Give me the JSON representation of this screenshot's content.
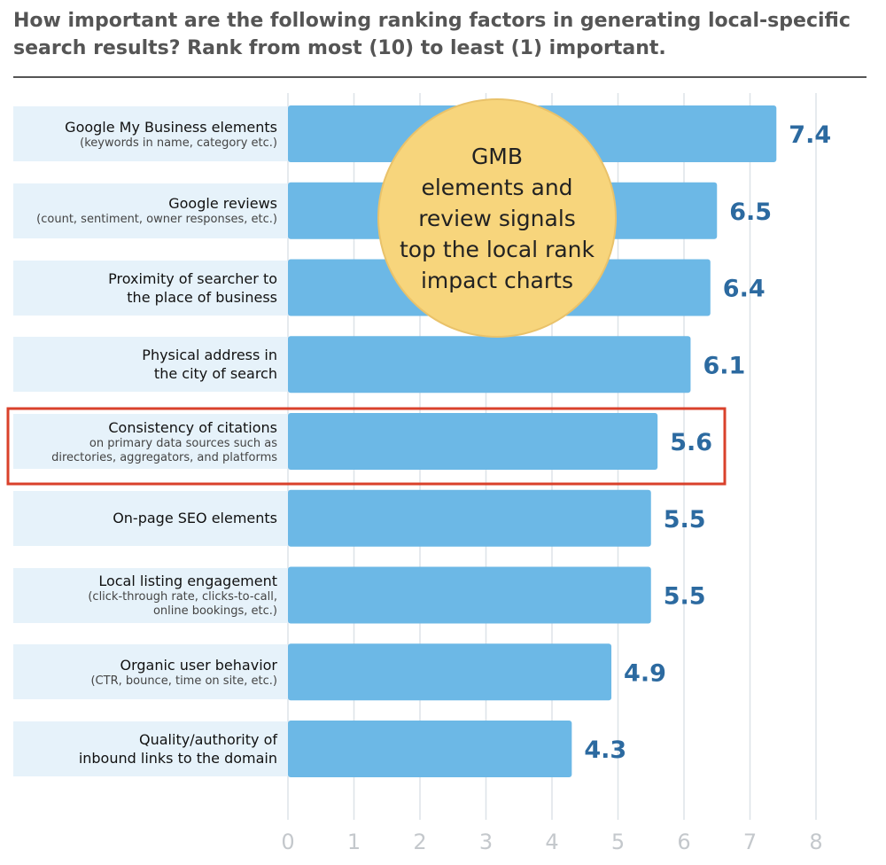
{
  "chart_data": {
    "type": "bar",
    "orientation": "horizontal",
    "title": "How important are the following ranking factors in generating local-specific search results? Rank from most (10) to least (1) important.",
    "categories": [
      "Google My Business elements",
      "Google reviews",
      "Proximity of searcher to\nthe place of business",
      "Physical address in\nthe city of search",
      "Consistency of citations",
      "On-page SEO elements",
      "Local listing engagement",
      "Organic user behavior",
      "Quality/authority of\ninbound links to the domain"
    ],
    "category_notes": [
      "(keywords in name, category etc.)",
      "(count, sentiment, owner responses, etc.)",
      null,
      null,
      "on primary data sources such as\ndirectories, aggregators, and platforms",
      null,
      "(click-through rate, clicks-to-call,\nonline bookings, etc.)",
      "(CTR, bounce, time on site, etc.)",
      null
    ],
    "values": [
      7.4,
      6.5,
      6.4,
      6.1,
      5.6,
      5.5,
      5.5,
      4.9,
      4.3
    ],
    "color": "#6cb8e6",
    "value_label_color": "#2c6aa0",
    "highlighted": [
      4
    ],
    "highlight_color": "#d9412b",
    "annotation": "GMB\nelements and\nreview signals\ntop the local rank\nimpact charts",
    "xlim": [
      0,
      8
    ],
    "xticks": [
      0,
      1,
      2,
      3,
      4,
      5,
      6,
      7,
      8
    ],
    "grid": true
  }
}
